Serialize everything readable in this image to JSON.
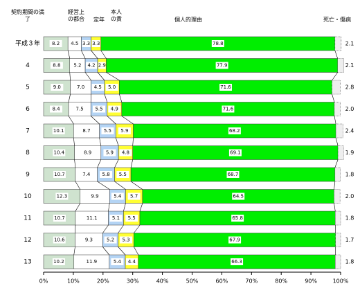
{
  "chart_data": {
    "type": "stacked-bar-horizontal",
    "categories": [
      "平成３年",
      "4",
      "5",
      "6",
      "7",
      "8",
      "9",
      "10",
      "11",
      "12",
      "13"
    ],
    "series": [
      {
        "name": "契約期間の満了",
        "color": "#cfe3cf",
        "values": [
          8.2,
          8.8,
          9.0,
          8.4,
          10.1,
          10.4,
          10.7,
          12.3,
          10.7,
          10.6,
          10.2
        ],
        "value_labels": [
          "8.2",
          "8.8",
          "9.0",
          "8.4",
          "10.1",
          "10.4",
          "10.7",
          "12.3",
          "10.7",
          "10.6",
          "10.2"
        ]
      },
      {
        "name": "経営上の都合",
        "color": "#ffffff",
        "values": [
          4.5,
          5.2,
          7.0,
          7.5,
          8.7,
          8.9,
          7.4,
          9.9,
          11.1,
          9.3,
          11.9
        ],
        "value_labels": [
          "4.5",
          "5.2",
          "7.0",
          "7.5",
          "8.7",
          "8.9",
          "7.4",
          "9.9",
          "11.1",
          "9.3",
          "11.9"
        ]
      },
      {
        "name": "定年",
        "color": "#b4d4f4",
        "values": [
          3.3,
          4.2,
          4.5,
          5.5,
          5.5,
          5.9,
          5.8,
          5.4,
          5.1,
          5.2,
          5.4
        ],
        "value_labels": [
          "3.3",
          "4.2",
          "4.5",
          "5.5",
          "5.5",
          "5.9",
          "5.8",
          "5.4",
          "5.1",
          "5.2",
          "5.4"
        ]
      },
      {
        "name": "本人の責",
        "color": "#ffff33",
        "values": [
          3.3,
          2.9,
          5.0,
          4.9,
          5.9,
          4.8,
          5.5,
          5.7,
          5.5,
          5.3,
          4.4
        ],
        "value_labels": [
          "3.3",
          "2.9",
          "5.0",
          "4.9",
          "5.9",
          "4.8",
          "5.5",
          "5.7",
          "5.5",
          "5.3",
          "4.4"
        ]
      },
      {
        "name": "個人的理由",
        "color": "#00ee00",
        "values": [
          78.8,
          77.9,
          71.6,
          71.6,
          68.2,
          69.1,
          68.7,
          64.5,
          65.8,
          67.9,
          66.3
        ],
        "value_labels": [
          "78.8",
          "77.9",
          "71.6",
          "71.6",
          "68.2",
          "69.1",
          "68.7",
          "64.5",
          "65.8",
          "67.9",
          "66.3"
        ]
      },
      {
        "name": "死亡・傷病",
        "color": "#eeeeee",
        "values": [
          2.1,
          2.1,
          2.8,
          2.0,
          2.4,
          1.9,
          1.8,
          2.0,
          1.8,
          1.7,
          1.8
        ],
        "value_labels": [
          "2.1",
          "2.1",
          "2.8",
          "2.0",
          "2.4",
          "1.9",
          "1.8",
          "2.0",
          "1.8",
          "1.7",
          "1.8"
        ]
      }
    ],
    "xlim": [
      0,
      100
    ],
    "xticks": [
      {
        "value": 0,
        "label": "0%"
      },
      {
        "value": 10,
        "label": "10%"
      },
      {
        "value": 20,
        "label": "20%"
      },
      {
        "value": 30,
        "label": "30%"
      },
      {
        "value": 40,
        "label": "40%"
      },
      {
        "value": 50,
        "label": "50%"
      },
      {
        "value": 60,
        "label": "60%"
      },
      {
        "value": 70,
        "label": "70%"
      },
      {
        "value": 80,
        "label": "80%"
      },
      {
        "value": 90,
        "label": "90%"
      },
      {
        "value": 100,
        "label": "100%"
      }
    ]
  }
}
